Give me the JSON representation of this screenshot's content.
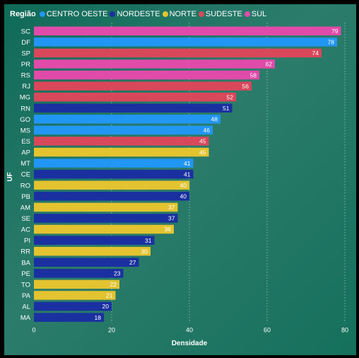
{
  "chart_data": {
    "type": "bar",
    "orientation": "horizontal",
    "legend_title": "Região",
    "legend": [
      {
        "name": "CENTRO OESTE",
        "color": "#2196f3"
      },
      {
        "name": "NORDESTE",
        "color": "#1a2fa0"
      },
      {
        "name": "NORTE",
        "color": "#e3c330"
      },
      {
        "name": "SUDESTE",
        "color": "#d9485a"
      },
      {
        "name": "SUL",
        "color": "#e04aa8"
      }
    ],
    "legend_position": "top-left",
    "xlabel": "Densidade",
    "ylabel": "UF",
    "xlim": [
      0,
      80
    ],
    "xticks": [
      0,
      20,
      40,
      60,
      80
    ],
    "grid": "vertical dotted",
    "categories": [
      "SC",
      "DF",
      "SP",
      "PR",
      "RS",
      "RJ",
      "MG",
      "RN",
      "GO",
      "MS",
      "ES",
      "AP",
      "MT",
      "CE",
      "RO",
      "PB",
      "AM",
      "SE",
      "AC",
      "PI",
      "RR",
      "BA",
      "PE",
      "TO",
      "PA",
      "AL",
      "MA"
    ],
    "values": [
      79,
      78,
      74,
      62,
      58,
      56,
      52,
      51,
      48,
      46,
      45,
      45,
      41,
      41,
      40,
      40,
      37,
      37,
      36,
      31,
      30,
      27,
      23,
      22,
      21,
      20,
      18
    ],
    "regions": [
      "SUL",
      "CENTRO OESTE",
      "SUDESTE",
      "SUL",
      "SUL",
      "SUDESTE",
      "SUDESTE",
      "NORDESTE",
      "CENTRO OESTE",
      "CENTRO OESTE",
      "SUDESTE",
      "NORTE",
      "CENTRO OESTE",
      "NORDESTE",
      "NORTE",
      "NORDESTE",
      "NORTE",
      "NORDESTE",
      "NORTE",
      "NORDESTE",
      "NORTE",
      "NORDESTE",
      "NORDESTE",
      "NORTE",
      "NORTE",
      "NORDESTE",
      "NORDESTE"
    ]
  }
}
